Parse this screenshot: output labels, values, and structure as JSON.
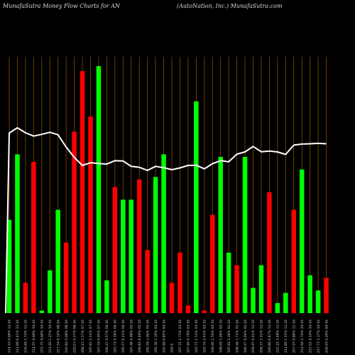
{
  "chart_data": {
    "type": "bar",
    "title_left": "MunafaSutra  Money Flow  Charts for AN",
    "title_right": "(AutoNation,  Inc.) MunafaSutra.com",
    "colors": {
      "background": "#000000",
      "up": "#00ff00",
      "down": "#ff0000",
      "grid": "#8a4a00",
      "price_line": "#ffffff"
    },
    "categories": [
      "214.43 0.68% 12:16",
      "212.99 0.41% 11:16",
      "216.69 1.74% 11:16",
      "214.55 0.68% 10:16",
      "215.75 0.68% 10:16",
      "212.60 1.25% 10:16",
      "217.54 0.32% 08:16",
      "216.84 0.08% 08:16",
      "220.57 0.57% 08:16",
      "208.15 1.57% 07:16",
      "195.65 2.14% 07:16",
      "197.59 0.95% 07:16",
      "196.47 0.57% 06:16",
      "193.72 0.58% 06:16",
      "195.57 0.21% 06:16",
      "197.48 0.98% 05:16",
      "196.82 0.46% 05:16",
      "195.59 1.06% 05:16",
      "195.36 1.36% 04:16",
      "195.99 0.85% 04:16",
      "194.9",
      "197.31 1.73% 03:16",
      "197.94 0.79% 03:16",
      "193.71 1.53% 03:16",
      "195.74 2.45% 02:16",
      "196.06 1.56% 02:16",
      "198.09 1.06% 02:16",
      "195.92 2.38% 01:16",
      "198.46 1.71% 01:16",
      "196.47 0.69% 01:16",
      "200.97 0.61% 12:16",
      "206.37 1.91% 12:16",
      "220.86 0.87% 12:16",
      "215.22 1.48% 11:16",
      "211.80 1.15% 11:16",
      "207.07 0.88% 11:16",
      "214.94 1.76% 10:16",
      "215.01 0.16% 10:16",
      "217.73 1.37% 10:16",
      "226.93 0.26% 09:16"
    ],
    "values": [
      37,
      63,
      12,
      60,
      1,
      17,
      41,
      28,
      72,
      96,
      78,
      98,
      13,
      50,
      45,
      45,
      53,
      25,
      54,
      63,
      12,
      24,
      3,
      84,
      1,
      39,
      62,
      24,
      19,
      62,
      10,
      19,
      48,
      4,
      8,
      41,
      57,
      15,
      9,
      14
    ],
    "directions": [
      "up",
      "up",
      "down",
      "down",
      "up",
      "up",
      "up",
      "down",
      "down",
      "down",
      "down",
      "up",
      "up",
      "down",
      "up",
      "up",
      "down",
      "down",
      "up",
      "up",
      "down",
      "down",
      "down",
      "up",
      "down",
      "down",
      "up",
      "up",
      "down",
      "up",
      "up",
      "up",
      "down",
      "up",
      "up",
      "down",
      "up",
      "up",
      "up",
      "down"
    ],
    "price_line": [
      214.4,
      216.7,
      214.5,
      213.0,
      213.8,
      214.7,
      213.6,
      208.2,
      203.6,
      200.0,
      201.2,
      200.9,
      200.6,
      202.1,
      202.0,
      199.6,
      199.2,
      197.8,
      199.6,
      199.0,
      198.1,
      198.9,
      200.0,
      200.1,
      198.5,
      200.8,
      202.1,
      201.6,
      205.0,
      206.0,
      208.4,
      206.1,
      206.4,
      206.0,
      204.9,
      209.0,
      209.5,
      209.6,
      209.8,
      209.6
    ],
    "ylim": [
      0,
      100
    ]
  }
}
